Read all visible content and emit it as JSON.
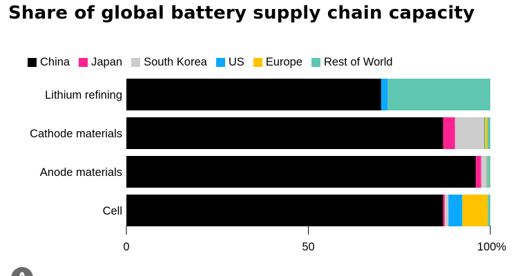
{
  "chart_data": {
    "type": "bar",
    "orientation": "horizontal",
    "stacked": true,
    "title": "Share of global battery supply chain capacity",
    "categories": [
      "Lithium refining",
      "Cathode materials",
      "Anode materials",
      "Cell"
    ],
    "series": [
      {
        "name": "China",
        "color": "#000000",
        "values": [
          70,
          87,
          96,
          87
        ]
      },
      {
        "name": "Japan",
        "color": "#ff2290",
        "values": [
          0,
          3.3,
          1.5,
          0.5
        ]
      },
      {
        "name": "South Korea",
        "color": "#cccccc",
        "values": [
          0,
          8,
          1.5,
          1
        ]
      },
      {
        "name": "US",
        "color": "#0aa9ff",
        "values": [
          1.8,
          0.2,
          0.2,
          3.8
        ]
      },
      {
        "name": "Europe",
        "color": "#ffc300",
        "values": [
          0,
          0.7,
          0.2,
          7
        ]
      },
      {
        "name": "Rest of World",
        "color": "#5fc6b2",
        "values": [
          28.2,
          0.8,
          0.6,
          0.7
        ]
      }
    ],
    "xlim": [
      0,
      100
    ],
    "x_ticks": [
      "0",
      "50",
      "100%"
    ],
    "x_tick_values": [
      0,
      50,
      100
    ],
    "legend_position": "top",
    "grid": false
  },
  "logo": {
    "text": "A"
  }
}
